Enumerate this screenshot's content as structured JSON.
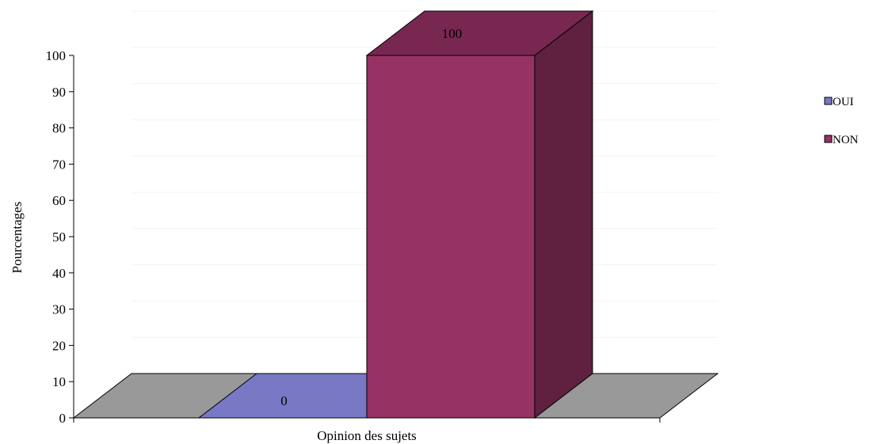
{
  "chart_data": {
    "type": "bar",
    "style": "3d-column",
    "title": "",
    "xlabel": "Opinion des sujets",
    "ylabel": "Pourcentages",
    "ylim": [
      0,
      100
    ],
    "yticks": [
      0,
      10,
      20,
      30,
      40,
      50,
      60,
      70,
      80,
      90,
      100
    ],
    "categories": [
      "Opinion des sujets"
    ],
    "series": [
      {
        "name": "OUI",
        "values": [
          0
        ],
        "color": "#7878C4",
        "data_label": "0"
      },
      {
        "name": "NON",
        "values": [
          100
        ],
        "color": "#963264",
        "data_label": "100"
      }
    ],
    "legend_position": "right",
    "floor_color": "#999999",
    "grid": true
  }
}
